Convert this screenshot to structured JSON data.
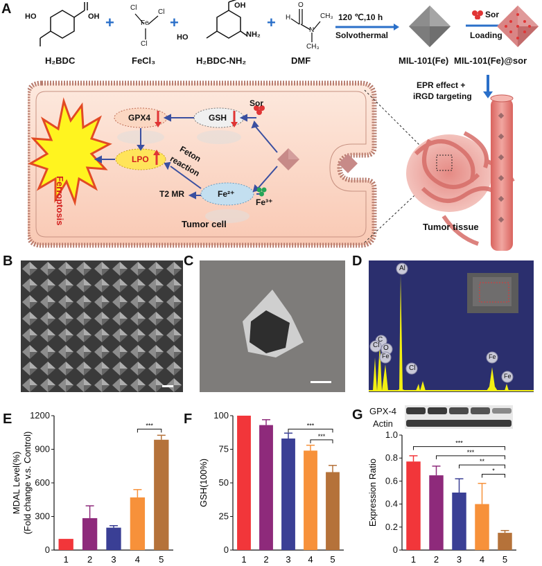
{
  "panel_labels": {
    "a": "A",
    "b": "B",
    "c": "C",
    "d": "D",
    "e": "E",
    "f": "F",
    "g": "G"
  },
  "scheme": {
    "reagents": [
      "H₂BDC",
      "FeCl₃",
      "H₂BDC-NH₂",
      "DMF"
    ],
    "atoms": {
      "oh": "OH",
      "ho": "HO",
      "cl": "Cl",
      "fe": "Fe",
      "nh2": "NH₂",
      "h": "H",
      "o": "O",
      "n": "N",
      "ch3": "CH₃"
    },
    "plus": "+",
    "step1_top": "120 ℃,10 h",
    "step1_bottom": "Solvothermal",
    "step2_top": "Sor",
    "step2_bottom": "Loading",
    "product1": "MIL-101(Fe)",
    "product2": "MIL-101(Fe)@sor",
    "epr": "EPR effect +",
    "irgd": "iRGD targeting",
    "tumor_tissue": "Tumor tissue",
    "tumor_cell": "Tumor cell",
    "ferroptosis": "Ferroptosis",
    "gpx4": "GPX4",
    "gsh": "GSH",
    "sor": "Sor",
    "lpo": "LPO",
    "feton": "Feton",
    "reaction": "reaction",
    "t2mr": "T2 MR",
    "fe2": "Fe²⁺",
    "fe3": "Fe³⁺"
  },
  "eds": {
    "peaks": [
      "C",
      "O",
      "Cl",
      "Fe",
      "Al",
      "Cl",
      "Fe",
      "Fe"
    ],
    "colors": {
      "background": "#2b2f6e",
      "spectrum": "#f2ef12"
    }
  },
  "western": {
    "gpx4": "GPX-4",
    "actin": "Actin"
  },
  "colors": {
    "g1": "#f2363a",
    "g2": "#8e2a7b",
    "g3": "#3a3f95",
    "g4": "#f7913a",
    "g5": "#b5723a"
  },
  "chart_data": [
    {
      "type": "bar",
      "panel": "E",
      "categories": [
        "1",
        "2",
        "3",
        "4",
        "5"
      ],
      "values": [
        100,
        285,
        200,
        470,
        985
      ],
      "errors": [
        0,
        110,
        18,
        70,
        40
      ],
      "ylabel_line1": "MDAL Level(%)",
      "ylabel_line2": "(Fold change v.s. Control)",
      "yticks": [
        "0",
        "300",
        "600",
        "900",
        "1200"
      ],
      "ylim": [
        0,
        1200
      ],
      "significance": [
        {
          "from": "4",
          "to": "5",
          "label": "***"
        }
      ]
    },
    {
      "type": "bar",
      "panel": "F",
      "categories": [
        "1",
        "2",
        "3",
        "4",
        "5"
      ],
      "values": [
        100,
        93,
        83,
        74,
        58
      ],
      "errors": [
        0,
        4,
        4,
        4,
        5
      ],
      "ylabel": "GSH(100%)",
      "yticks": [
        "0",
        "25",
        "50",
        "75",
        "100"
      ],
      "ylim": [
        0,
        100
      ],
      "significance": [
        {
          "from": "3",
          "to": "5",
          "label": "***"
        },
        {
          "from": "4",
          "to": "5",
          "label": "***"
        }
      ]
    },
    {
      "type": "bar",
      "panel": "G",
      "categories": [
        "1",
        "2",
        "3",
        "4",
        "5"
      ],
      "values": [
        0.77,
        0.65,
        0.5,
        0.4,
        0.15
      ],
      "errors": [
        0.05,
        0.08,
        0.12,
        0.18,
        0.02
      ],
      "ylabel": "Expression Ratio",
      "yticks": [
        "0",
        "0.2",
        "0.4",
        "0.6",
        "0.8",
        "1.0"
      ],
      "ylim": [
        0,
        1.0
      ],
      "significance": [
        {
          "from": "1",
          "to": "5",
          "label": "***"
        },
        {
          "from": "2",
          "to": "5",
          "label": "***"
        },
        {
          "from": "3",
          "to": "5",
          "label": "**"
        },
        {
          "from": "4",
          "to": "5",
          "label": "*"
        }
      ]
    }
  ]
}
